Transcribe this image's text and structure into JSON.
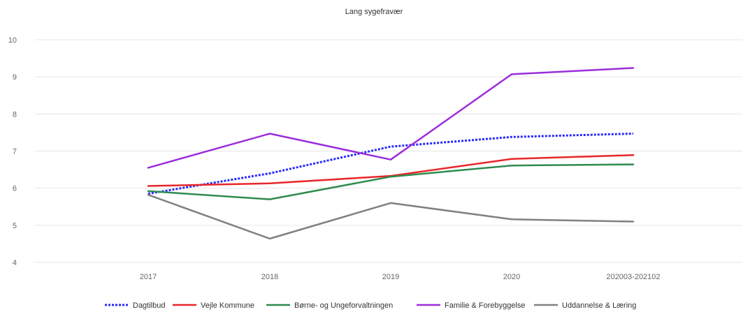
{
  "chart_data": {
    "type": "line",
    "title": "Lang sygefravær",
    "xlabel": "",
    "ylabel": "",
    "categories": [
      "2017",
      "2018",
      "2019",
      "2020",
      "202003-202102"
    ],
    "ylim": [
      4,
      10
    ],
    "yticks": [
      4,
      5,
      6,
      7,
      8,
      9,
      10
    ],
    "grid": true,
    "legend_position": "bottom",
    "series": [
      {
        "name": "Dagtilbud",
        "color": "#2a2aff",
        "style": "dotted",
        "values": [
          5.85,
          6.4,
          7.12,
          7.38,
          7.47
        ]
      },
      {
        "name": "Vejle Kommune",
        "color": "#e8262a",
        "style": "solid",
        "values": [
          6.06,
          6.13,
          6.33,
          6.79,
          6.89
        ]
      },
      {
        "name": "Børne- og Ungeforvaltningen",
        "color": "#2e8b4f",
        "style": "solid",
        "values": [
          5.92,
          5.7,
          6.31,
          6.61,
          6.64
        ]
      },
      {
        "name": "Familie & Forebyggelse",
        "color": "#9b2ddb",
        "style": "solid",
        "values": [
          6.55,
          7.47,
          6.77,
          9.07,
          9.24
        ]
      },
      {
        "name": "Uddannelse & Læring",
        "color": "#808080",
        "style": "solid",
        "values": [
          5.82,
          4.64,
          5.6,
          5.16,
          5.1
        ]
      }
    ]
  }
}
